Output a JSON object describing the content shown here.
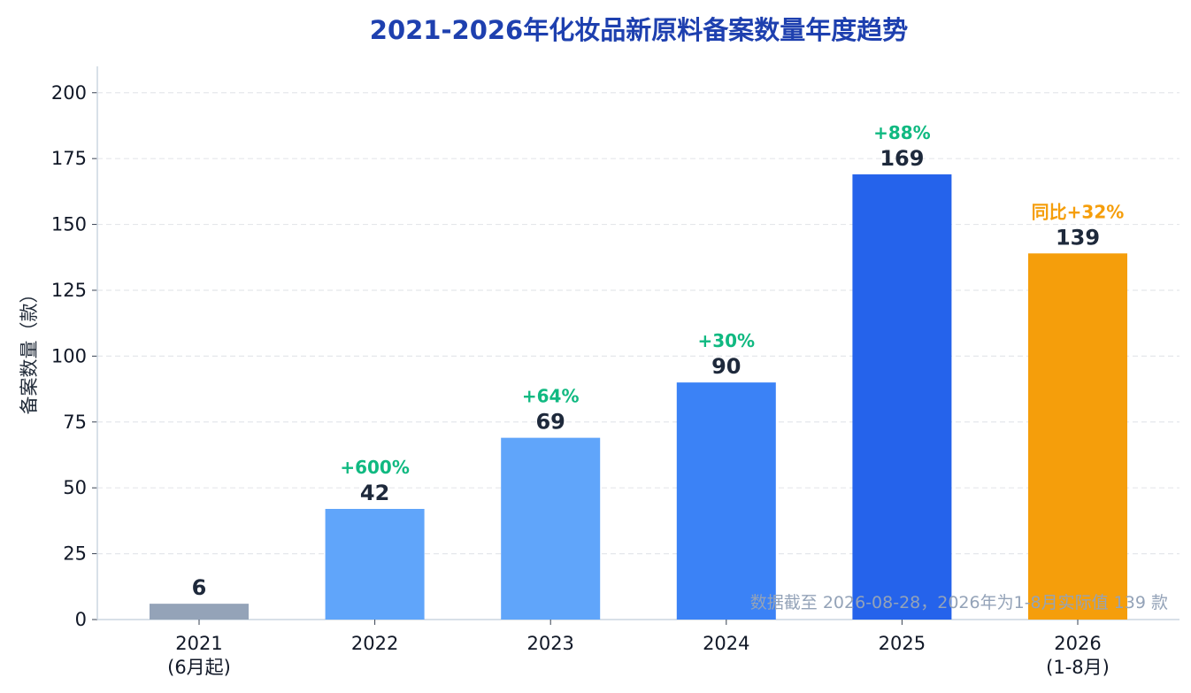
{
  "chart_data": {
    "type": "bar",
    "title": "2021-2026年化妆品新原料备案数量年度趋势",
    "ylabel": "备案数量（款）",
    "xlabel": "",
    "ylim": [
      0,
      210
    ],
    "yticks": [
      0,
      25,
      50,
      75,
      100,
      125,
      150,
      175,
      200
    ],
    "grid": true,
    "categories": [
      {
        "year": "2021",
        "sub": "(6月起)"
      },
      {
        "year": "2022",
        "sub": ""
      },
      {
        "year": "2023",
        "sub": ""
      },
      {
        "year": "2024",
        "sub": ""
      },
      {
        "year": "2025",
        "sub": ""
      },
      {
        "year": "2026",
        "sub": "(1-8月)"
      }
    ],
    "values": [
      6,
      42,
      69,
      90,
      169,
      139
    ],
    "growth_labels": [
      "",
      "+600%",
      "+64%",
      "+30%",
      "+88%",
      "同比+32%"
    ],
    "bar_colors": [
      "#94a3b8",
      "#60a5fa",
      "#60a5fa",
      "#3b82f6",
      "#2563eb",
      "#f59e0b"
    ],
    "growth_colors": [
      "#10b981",
      "#10b981",
      "#10b981",
      "#10b981",
      "#10b981",
      "#f59e0b"
    ],
    "footnote": "数据截至 2026-08-28，2026年为1-8月实际值 139 款",
    "colors": {
      "title": "#1e40af",
      "value_label": "#1e293b",
      "footnote": "#94a3b8",
      "grid": "#e5e7eb",
      "axis": "#cbd5e1"
    }
  }
}
